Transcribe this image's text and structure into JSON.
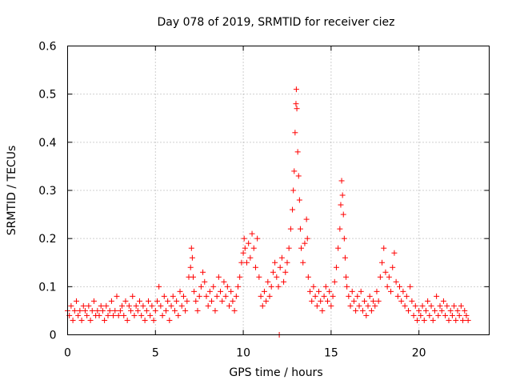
{
  "chart_data": {
    "type": "scatter",
    "title": "Day 078 of 2019, SRMTID for receiver ciez",
    "xlabel": "GPS time / hours",
    "ylabel": "SRMTID / TECUs",
    "xlim": [
      0,
      24
    ],
    "ylim": [
      0,
      0.6
    ],
    "xticks": [
      0,
      5,
      10,
      15,
      20
    ],
    "xtick_labels": [
      "0",
      "5",
      "10",
      "15",
      "20"
    ],
    "yticks": [
      0,
      0.1,
      0.2,
      0.3,
      0.4,
      0.5,
      0.6
    ],
    "ytick_labels": [
      "0",
      "0.1",
      "0.2",
      "0.3",
      "0.4",
      "0.5",
      "0.6"
    ],
    "grid": true,
    "marker": "+",
    "color": "#ff0000",
    "series": [
      {
        "name": "SRMTID",
        "points": [
          [
            0.0,
            0.05
          ],
          [
            0.1,
            0.04
          ],
          [
            0.2,
            0.06
          ],
          [
            0.3,
            0.03
          ],
          [
            0.4,
            0.05
          ],
          [
            0.5,
            0.07
          ],
          [
            0.6,
            0.04
          ],
          [
            0.7,
            0.05
          ],
          [
            0.8,
            0.03
          ],
          [
            0.9,
            0.06
          ],
          [
            1.0,
            0.05
          ],
          [
            1.1,
            0.04
          ],
          [
            1.2,
            0.06
          ],
          [
            1.3,
            0.03
          ],
          [
            1.4,
            0.05
          ],
          [
            1.5,
            0.07
          ],
          [
            1.6,
            0.04
          ],
          [
            1.7,
            0.05
          ],
          [
            1.8,
            0.04
          ],
          [
            1.9,
            0.06
          ],
          [
            2.0,
            0.05
          ],
          [
            2.1,
            0.03
          ],
          [
            2.2,
            0.06
          ],
          [
            2.3,
            0.04
          ],
          [
            2.4,
            0.05
          ],
          [
            2.5,
            0.07
          ],
          [
            2.6,
            0.04
          ],
          [
            2.7,
            0.05
          ],
          [
            2.8,
            0.08
          ],
          [
            2.9,
            0.04
          ],
          [
            3.0,
            0.05
          ],
          [
            3.1,
            0.06
          ],
          [
            3.2,
            0.04
          ],
          [
            3.3,
            0.07
          ],
          [
            3.4,
            0.03
          ],
          [
            3.5,
            0.06
          ],
          [
            3.6,
            0.05
          ],
          [
            3.7,
            0.08
          ],
          [
            3.8,
            0.04
          ],
          [
            3.9,
            0.06
          ],
          [
            4.0,
            0.05
          ],
          [
            4.1,
            0.07
          ],
          [
            4.2,
            0.04
          ],
          [
            4.3,
            0.06
          ],
          [
            4.4,
            0.03
          ],
          [
            4.5,
            0.05
          ],
          [
            4.6,
            0.07
          ],
          [
            4.7,
            0.04
          ],
          [
            4.8,
            0.06
          ],
          [
            4.9,
            0.03
          ],
          [
            5.0,
            0.05
          ],
          [
            5.1,
            0.07
          ],
          [
            5.2,
            0.1
          ],
          [
            5.3,
            0.06
          ],
          [
            5.4,
            0.04
          ],
          [
            5.5,
            0.08
          ],
          [
            5.6,
            0.05
          ],
          [
            5.7,
            0.07
          ],
          [
            5.8,
            0.03
          ],
          [
            5.9,
            0.06
          ],
          [
            6.0,
            0.08
          ],
          [
            6.1,
            0.05
          ],
          [
            6.2,
            0.07
          ],
          [
            6.3,
            0.04
          ],
          [
            6.4,
            0.09
          ],
          [
            6.5,
            0.06
          ],
          [
            6.6,
            0.08
          ],
          [
            6.7,
            0.05
          ],
          [
            6.8,
            0.07
          ],
          [
            6.9,
            0.12
          ],
          [
            7.0,
            0.14
          ],
          [
            7.05,
            0.18
          ],
          [
            7.1,
            0.16
          ],
          [
            7.15,
            0.12
          ],
          [
            7.2,
            0.09
          ],
          [
            7.3,
            0.07
          ],
          [
            7.4,
            0.05
          ],
          [
            7.5,
            0.08
          ],
          [
            7.6,
            0.1
          ],
          [
            7.7,
            0.13
          ],
          [
            7.8,
            0.11
          ],
          [
            7.9,
            0.08
          ],
          [
            8.0,
            0.06
          ],
          [
            8.1,
            0.09
          ],
          [
            8.2,
            0.07
          ],
          [
            8.3,
            0.1
          ],
          [
            8.4,
            0.05
          ],
          [
            8.5,
            0.08
          ],
          [
            8.6,
            0.12
          ],
          [
            8.7,
            0.09
          ],
          [
            8.8,
            0.07
          ],
          [
            8.9,
            0.11
          ],
          [
            9.0,
            0.08
          ],
          [
            9.1,
            0.1
          ],
          [
            9.2,
            0.06
          ],
          [
            9.3,
            0.09
          ],
          [
            9.4,
            0.07
          ],
          [
            9.5,
            0.05
          ],
          [
            9.6,
            0.08
          ],
          [
            9.7,
            0.1
          ],
          [
            9.8,
            0.12
          ],
          [
            9.9,
            0.15
          ],
          [
            10.0,
            0.17
          ],
          [
            10.05,
            0.2
          ],
          [
            10.1,
            0.18
          ],
          [
            10.2,
            0.15
          ],
          [
            10.3,
            0.19
          ],
          [
            10.4,
            0.16
          ],
          [
            10.5,
            0.21
          ],
          [
            10.6,
            0.18
          ],
          [
            10.7,
            0.14
          ],
          [
            10.8,
            0.2
          ],
          [
            10.9,
            0.12
          ],
          [
            11.0,
            0.08
          ],
          [
            11.1,
            0.06
          ],
          [
            11.2,
            0.09
          ],
          [
            11.3,
            0.07
          ],
          [
            11.4,
            0.11
          ],
          [
            11.5,
            0.08
          ],
          [
            11.6,
            0.1
          ],
          [
            11.7,
            0.13
          ],
          [
            11.8,
            0.15
          ],
          [
            11.9,
            0.12
          ],
          [
            12.0,
            0.1
          ],
          [
            12.05,
            0.0
          ],
          [
            12.1,
            0.14
          ],
          [
            12.2,
            0.16
          ],
          [
            12.3,
            0.11
          ],
          [
            12.4,
            0.13
          ],
          [
            12.5,
            0.15
          ],
          [
            12.6,
            0.18
          ],
          [
            12.7,
            0.22
          ],
          [
            12.8,
            0.26
          ],
          [
            12.85,
            0.3
          ],
          [
            12.9,
            0.34
          ],
          [
            12.95,
            0.42
          ],
          [
            13.0,
            0.48
          ],
          [
            13.02,
            0.51
          ],
          [
            13.05,
            0.47
          ],
          [
            13.1,
            0.38
          ],
          [
            13.15,
            0.33
          ],
          [
            13.2,
            0.28
          ],
          [
            13.25,
            0.22
          ],
          [
            13.3,
            0.18
          ],
          [
            13.4,
            0.15
          ],
          [
            13.5,
            0.19
          ],
          [
            13.6,
            0.24
          ],
          [
            13.65,
            0.2
          ],
          [
            13.7,
            0.12
          ],
          [
            13.8,
            0.09
          ],
          [
            13.9,
            0.07
          ],
          [
            14.0,
            0.1
          ],
          [
            14.1,
            0.08
          ],
          [
            14.2,
            0.06
          ],
          [
            14.3,
            0.09
          ],
          [
            14.4,
            0.07
          ],
          [
            14.5,
            0.05
          ],
          [
            14.6,
            0.08
          ],
          [
            14.7,
            0.1
          ],
          [
            14.8,
            0.07
          ],
          [
            14.9,
            0.09
          ],
          [
            15.0,
            0.06
          ],
          [
            15.1,
            0.08
          ],
          [
            15.2,
            0.11
          ],
          [
            15.3,
            0.14
          ],
          [
            15.4,
            0.18
          ],
          [
            15.5,
            0.22
          ],
          [
            15.55,
            0.27
          ],
          [
            15.6,
            0.32
          ],
          [
            15.65,
            0.29
          ],
          [
            15.7,
            0.25
          ],
          [
            15.75,
            0.2
          ],
          [
            15.8,
            0.16
          ],
          [
            15.85,
            0.12
          ],
          [
            15.9,
            0.1
          ],
          [
            16.0,
            0.08
          ],
          [
            16.1,
            0.06
          ],
          [
            16.2,
            0.09
          ],
          [
            16.3,
            0.07
          ],
          [
            16.4,
            0.05
          ],
          [
            16.5,
            0.08
          ],
          [
            16.6,
            0.06
          ],
          [
            16.7,
            0.09
          ],
          [
            16.8,
            0.05
          ],
          [
            16.9,
            0.07
          ],
          [
            17.0,
            0.04
          ],
          [
            17.1,
            0.06
          ],
          [
            17.2,
            0.08
          ],
          [
            17.3,
            0.05
          ],
          [
            17.4,
            0.07
          ],
          [
            17.5,
            0.06
          ],
          [
            17.6,
            0.09
          ],
          [
            17.7,
            0.07
          ],
          [
            17.8,
            0.12
          ],
          [
            17.9,
            0.15
          ],
          [
            18.0,
            0.18
          ],
          [
            18.1,
            0.13
          ],
          [
            18.2,
            0.1
          ],
          [
            18.3,
            0.12
          ],
          [
            18.4,
            0.09
          ],
          [
            18.5,
            0.14
          ],
          [
            18.6,
            0.17
          ],
          [
            18.7,
            0.11
          ],
          [
            18.8,
            0.08
          ],
          [
            18.9,
            0.1
          ],
          [
            19.0,
            0.07
          ],
          [
            19.1,
            0.09
          ],
          [
            19.2,
            0.06
          ],
          [
            19.3,
            0.08
          ],
          [
            19.4,
            0.05
          ],
          [
            19.5,
            0.1
          ],
          [
            19.6,
            0.07
          ],
          [
            19.7,
            0.04
          ],
          [
            19.8,
            0.06
          ],
          [
            19.9,
            0.03
          ],
          [
            20.0,
            0.05
          ],
          [
            20.1,
            0.04
          ],
          [
            20.2,
            0.06
          ],
          [
            20.3,
            0.03
          ],
          [
            20.4,
            0.05
          ],
          [
            20.5,
            0.07
          ],
          [
            20.6,
            0.04
          ],
          [
            20.7,
            0.06
          ],
          [
            20.8,
            0.03
          ],
          [
            20.9,
            0.05
          ],
          [
            21.0,
            0.08
          ],
          [
            21.1,
            0.04
          ],
          [
            21.2,
            0.06
          ],
          [
            21.3,
            0.05
          ],
          [
            21.4,
            0.07
          ],
          [
            21.5,
            0.04
          ],
          [
            21.6,
            0.06
          ],
          [
            21.7,
            0.03
          ],
          [
            21.8,
            0.05
          ],
          [
            21.9,
            0.04
          ],
          [
            22.0,
            0.06
          ],
          [
            22.1,
            0.03
          ],
          [
            22.2,
            0.05
          ],
          [
            22.3,
            0.04
          ],
          [
            22.4,
            0.06
          ],
          [
            22.5,
            0.03
          ],
          [
            22.6,
            0.05
          ],
          [
            22.7,
            0.04
          ],
          [
            22.8,
            0.03
          ]
        ]
      }
    ]
  }
}
